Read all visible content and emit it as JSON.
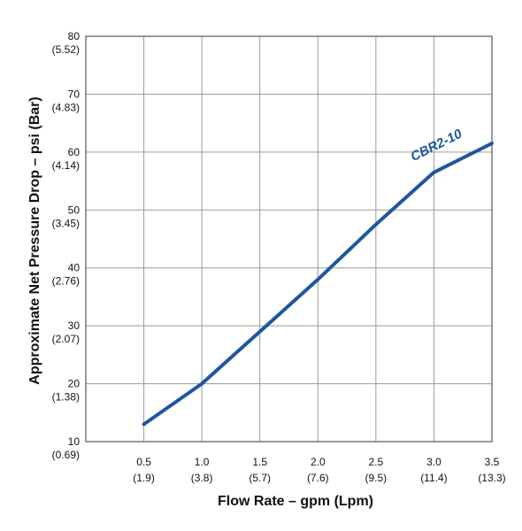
{
  "chart_data": {
    "type": "line",
    "xlabel": "Flow Rate – gpm (Lpm)",
    "ylabel": "Approximate Net Pressure Drop – psi (Bar)",
    "xlim": [
      0.5,
      3.5
    ],
    "ylim": [
      10,
      80
    ],
    "x_ticks": [
      {
        "value": 0.5,
        "label": "0.5",
        "sub": "(1.9)"
      },
      {
        "value": 1.0,
        "label": "1.0",
        "sub": "(3.8)"
      },
      {
        "value": 1.5,
        "label": "1.5",
        "sub": "(5.7)"
      },
      {
        "value": 2.0,
        "label": "2.0",
        "sub": "(7.6)"
      },
      {
        "value": 2.5,
        "label": "2.5",
        "sub": "(9.5)"
      },
      {
        "value": 3.0,
        "label": "3.0",
        "sub": "(11.4)"
      },
      {
        "value": 3.5,
        "label": "3.5",
        "sub": "(13.3)"
      }
    ],
    "y_ticks": [
      {
        "value": 10,
        "label": "10",
        "sub": "(0.69)"
      },
      {
        "value": 20,
        "label": "20",
        "sub": "(1.38)"
      },
      {
        "value": 30,
        "label": "30",
        "sub": "(2.07)"
      },
      {
        "value": 40,
        "label": "40",
        "sub": "(2.76)"
      },
      {
        "value": 50,
        "label": "50",
        "sub": "(3.45)"
      },
      {
        "value": 60,
        "label": "60",
        "sub": "(4.14)"
      },
      {
        "value": 70,
        "label": "70",
        "sub": "(4.83)"
      },
      {
        "value": 80,
        "label": "80",
        "sub": "(5.52)"
      }
    ],
    "grid": true,
    "series": [
      {
        "name": "CBR2-10",
        "color": "#1f56a0",
        "x": [
          0.5,
          1.0,
          1.5,
          2.0,
          2.5,
          3.0,
          3.5
        ],
        "y": [
          13,
          20,
          29,
          38,
          47.5,
          56.5,
          61.5
        ]
      }
    ]
  }
}
